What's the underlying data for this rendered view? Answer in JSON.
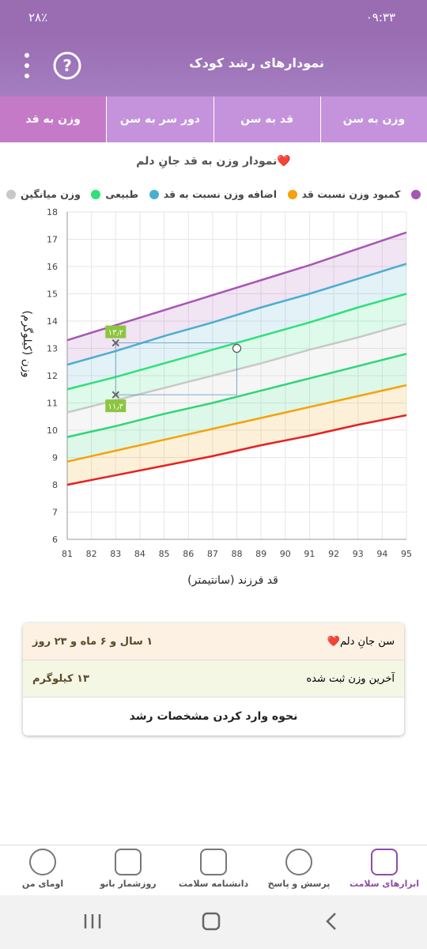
{
  "status": {
    "time": "۰۹:۳۳",
    "battery": "۲۸٪"
  },
  "header": {
    "title": "نمودارهای رشد کودک"
  },
  "tabs": [
    "وزن به سن",
    "قد به سن",
    "دور سر به سن",
    "وزن به قد"
  ],
  "chart_data": {
    "type": "line",
    "title": "نمودار وزن به قد جانِ دلم❤️",
    "legend": [
      {
        "color": "#a855b5"
      },
      {
        "label": "کمبود وزن نسبت قد",
        "color": "#f5a20c"
      },
      {
        "label": "اضافه وزن نسبت به قد",
        "color": "#4aaecf"
      },
      {
        "label": "طبیعی",
        "color": "#2ee07a"
      },
      {
        "label": "وزن میانگین",
        "color": "#c8c8c8"
      }
    ],
    "x": [
      81,
      83,
      85,
      87,
      89,
      91,
      93,
      95
    ],
    "series": [
      {
        "color": "#a855b5",
        "values": [
          13.3,
          13.85,
          14.4,
          14.95,
          15.5,
          16.05,
          16.65,
          17.25
        ]
      },
      {
        "color": "#4aaecf",
        "values": [
          12.4,
          12.9,
          13.45,
          13.95,
          14.5,
          15.0,
          15.55,
          16.1
        ]
      },
      {
        "color": "#2ee07a",
        "values": [
          11.5,
          11.95,
          12.45,
          12.95,
          13.45,
          13.95,
          14.5,
          15.0
        ]
      },
      {
        "color": "#c8c8c8",
        "values": [
          10.65,
          11.1,
          11.55,
          12.0,
          12.45,
          12.95,
          13.4,
          13.9
        ]
      },
      {
        "color": "#2ed676",
        "values": [
          9.75,
          10.15,
          10.6,
          11.0,
          11.45,
          11.9,
          12.35,
          12.8
        ]
      },
      {
        "color": "#f5a20c",
        "values": [
          8.85,
          9.25,
          9.65,
          10.05,
          10.45,
          10.85,
          11.25,
          11.65
        ]
      },
      {
        "color": "#e82020",
        "values": [
          8.0,
          8.35,
          8.7,
          9.05,
          9.45,
          9.8,
          10.2,
          10.55
        ]
      }
    ],
    "points": [
      {
        "x": 88,
        "y": 13,
        "marker": "circle"
      },
      {
        "x": 83,
        "y": 13.2,
        "marker": "x",
        "label": "۱۳٫۲"
      },
      {
        "x": 83,
        "y": 11.3,
        "marker": "x",
        "label": "۱۱٫۳"
      }
    ],
    "xlabel": "قد فرزند (سانتیمتر)",
    "ylabel": "وزن (کیلوگرم)",
    "xlim": [
      81,
      95
    ],
    "ylim": [
      6,
      18
    ],
    "xticks": [
      81,
      82,
      83,
      84,
      85,
      86,
      87,
      88,
      89,
      90,
      91,
      92,
      93,
      94,
      95
    ],
    "yticks": [
      6,
      7,
      8,
      9,
      10,
      11,
      12,
      13,
      14,
      15,
      16,
      17,
      18
    ],
    "grid": true
  },
  "card": {
    "rows": [
      {
        "label": "سن جانِ دلم❤️",
        "value": "۱ سال و ۶ ماه و ۲۳ روز"
      },
      {
        "label": "آخرین وزن ثبت شده",
        "value": "۱۳ کیلوگرم"
      }
    ],
    "button": "نحوه وارد کردن مشخصات رشد"
  },
  "nav": [
    "ابزارهای سلامت",
    "پرسش و پاسخ",
    "دانشنامه سلامت",
    "روزشمار بانو",
    "اومای من"
  ]
}
